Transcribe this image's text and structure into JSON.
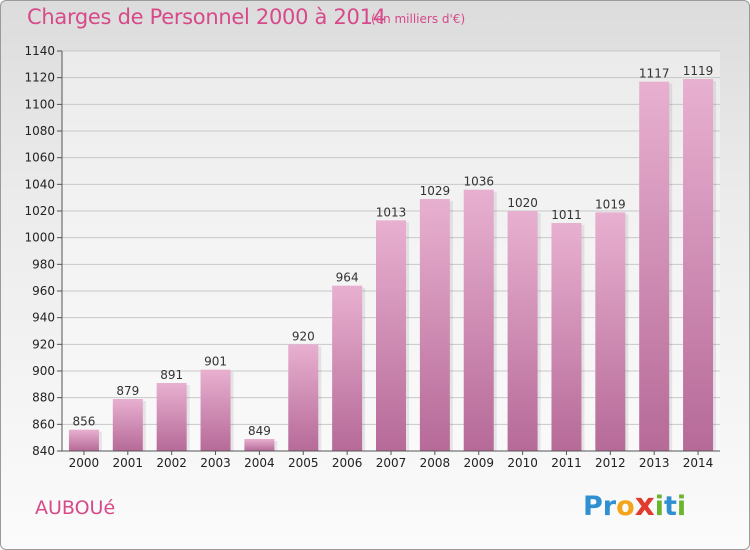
{
  "header": {
    "title": "Charges de Personnel 2000 à 2014",
    "subtitle": "(en milliers d'€)"
  },
  "footer": {
    "town": "AUBOUé",
    "logo": {
      "text": "Proxiti",
      "letters": [
        "P",
        "r",
        "o",
        "x",
        "i",
        "t",
        "i"
      ],
      "colors": [
        "#2f8fd0",
        "#2f8fd0",
        "#f2a51a",
        "#e23b2e",
        "#6ab42e",
        "#2f8fd0",
        "#6ab42e"
      ]
    }
  },
  "chart_data": {
    "type": "bar",
    "title": "Charges de Personnel 2000 à 2014",
    "subtitle": "(en milliers d'€)",
    "categories": [
      "2000",
      "2001",
      "2002",
      "2003",
      "2004",
      "2005",
      "2006",
      "2007",
      "2008",
      "2009",
      "2010",
      "2011",
      "2012",
      "2013",
      "2014"
    ],
    "values": [
      856,
      879,
      891,
      901,
      849,
      920,
      964,
      1013,
      1029,
      1036,
      1020,
      1011,
      1019,
      1117,
      1119
    ],
    "ylim": [
      840,
      1140
    ],
    "yticks": [
      840,
      860,
      880,
      900,
      920,
      940,
      960,
      980,
      1000,
      1020,
      1040,
      1060,
      1080,
      1100,
      1120,
      1140
    ],
    "xlabel": "",
    "ylabel": "",
    "grid": true,
    "colors": {
      "bar_top": "#e8b0d0",
      "bar_bottom": "#b66a98",
      "title": "#d64a8a"
    }
  }
}
